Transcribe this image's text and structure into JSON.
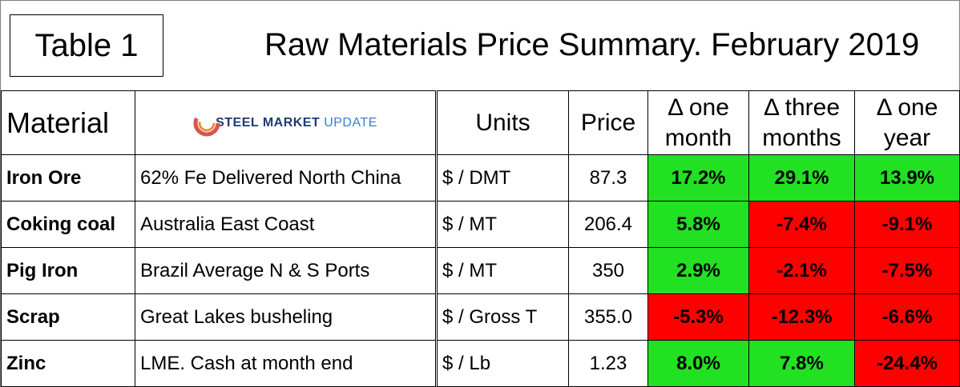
{
  "table_label": "Table 1",
  "title": "Raw Materials Price Summary. February 2019",
  "headers": {
    "material": "Material",
    "units": "Units",
    "price": "Price",
    "one_month_l1": "Δ one",
    "one_month_l2": "month",
    "three_months_l1": "Δ three",
    "three_months_l2": "months",
    "one_year_l1": "Δ one",
    "one_year_l2": "year"
  },
  "logo": {
    "part1": "STEEL",
    "part2": "MARKET",
    "part3": "UPDATE"
  },
  "rows": [
    {
      "material": "Iron Ore",
      "description": "62% Fe Delivered North China",
      "units": "$ / DMT",
      "price": "87.3",
      "one_month": "17.2%",
      "three_months": "29.1%",
      "one_year": "13.9%"
    },
    {
      "material": "Coking coal",
      "description": "Australia East Coast",
      "units": "$ / MT",
      "price": "206.4",
      "one_month": "5.8%",
      "three_months": "-7.4%",
      "one_year": "-9.1%"
    },
    {
      "material": "Pig Iron",
      "description": "Brazil Average N & S Ports",
      "units": "$ / MT",
      "price": "350",
      "one_month": "2.9%",
      "three_months": "-2.1%",
      "one_year": "-7.5%"
    },
    {
      "material": "Scrap",
      "description": "Great Lakes busheling",
      "units": "$ / Gross T",
      "price": "355.0",
      "one_month": "-5.3%",
      "three_months": "-12.3%",
      "one_year": "-6.6%"
    },
    {
      "material": "Zinc",
      "description": "LME. Cash at month end",
      "units": "$ / Lb",
      "price": "1.23",
      "one_month": "8.0%",
      "three_months": "7.8%",
      "one_year": "-24.4%"
    }
  ],
  "colors": {
    "positive": "#22e022",
    "negative": "#ff0000"
  }
}
